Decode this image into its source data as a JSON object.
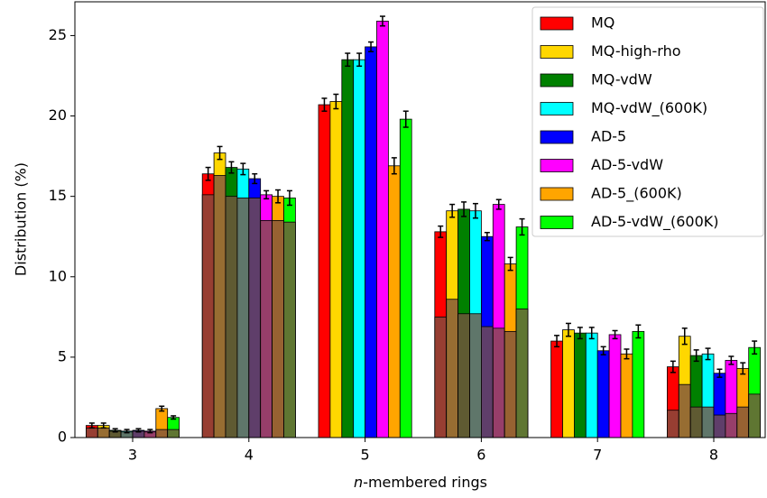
{
  "chart_data": {
    "type": "bar",
    "ylabel": "Distribution (%)",
    "xlabel": [
      "n",
      "-membered rings"
    ],
    "categories": [
      "3",
      "4",
      "5",
      "6",
      "7",
      "8"
    ],
    "ylim": [
      0,
      27.1
    ],
    "yticks": [
      0,
      5,
      10,
      15,
      20,
      25
    ],
    "overlay_color": "#7a5040",
    "overlay_opacity": 0.78,
    "legend": "upper right",
    "series": [
      {
        "name": "MQ",
        "color": "#ff0000",
        "values": [
          0.75,
          16.4,
          20.7,
          12.8,
          6.0,
          4.4
        ],
        "errors": [
          0.15,
          0.4,
          0.4,
          0.35,
          0.35,
          0.35
        ],
        "overlay_values": [
          0.6,
          15.1,
          null,
          7.5,
          null,
          1.7
        ]
      },
      {
        "name": "MQ-high-rho",
        "color": "#ffd700",
        "values": [
          0.75,
          17.7,
          20.9,
          14.1,
          6.7,
          6.3
        ],
        "errors": [
          0.15,
          0.4,
          0.45,
          0.4,
          0.4,
          0.5
        ],
        "overlay_values": [
          0.6,
          16.3,
          null,
          8.6,
          null,
          3.3
        ]
      },
      {
        "name": "MQ-vdW",
        "color": "#008000",
        "values": [
          0.45,
          16.8,
          23.5,
          14.2,
          6.5,
          5.1
        ],
        "errors": [
          0.1,
          0.35,
          0.4,
          0.45,
          0.35,
          0.35
        ],
        "overlay_values": [
          0.4,
          15.0,
          null,
          7.7,
          null,
          1.9
        ]
      },
      {
        "name": "MQ-vdW_(600K)",
        "color": "#00ffff",
        "values": [
          0.4,
          16.7,
          23.5,
          14.1,
          6.5,
          5.2
        ],
        "errors": [
          0.1,
          0.35,
          0.4,
          0.45,
          0.35,
          0.35
        ],
        "overlay_values": [
          0.35,
          14.9,
          null,
          7.7,
          null,
          1.9
        ]
      },
      {
        "name": "AD-5",
        "color": "#0000ff",
        "values": [
          0.45,
          16.1,
          24.3,
          12.5,
          5.4,
          4.0
        ],
        "errors": [
          0.1,
          0.3,
          0.3,
          0.25,
          0.25,
          0.25
        ],
        "overlay_values": [
          0.4,
          14.9,
          null,
          6.9,
          null,
          1.4
        ]
      },
      {
        "name": "AD-5-vdW",
        "color": "#ff00ff",
        "values": [
          0.4,
          15.1,
          25.9,
          14.5,
          6.4,
          4.8
        ],
        "errors": [
          0.1,
          0.25,
          0.3,
          0.3,
          0.25,
          0.25
        ],
        "overlay_values": [
          0.35,
          13.5,
          null,
          6.8,
          null,
          1.5
        ]
      },
      {
        "name": "AD-5_(600K)",
        "color": "#ffa500",
        "values": [
          1.8,
          15.0,
          16.9,
          10.8,
          5.2,
          4.3
        ],
        "errors": [
          0.15,
          0.4,
          0.5,
          0.4,
          0.3,
          0.35
        ],
        "overlay_values": [
          0.5,
          13.5,
          null,
          6.6,
          null,
          1.9
        ]
      },
      {
        "name": "AD-5-vdW_(600K)",
        "color": "#00ff00",
        "values": [
          1.25,
          14.9,
          19.8,
          13.1,
          6.6,
          5.6
        ],
        "errors": [
          0.1,
          0.45,
          0.5,
          0.5,
          0.4,
          0.4
        ],
        "overlay_values": [
          0.5,
          13.4,
          null,
          8.0,
          null,
          2.7
        ]
      }
    ]
  }
}
